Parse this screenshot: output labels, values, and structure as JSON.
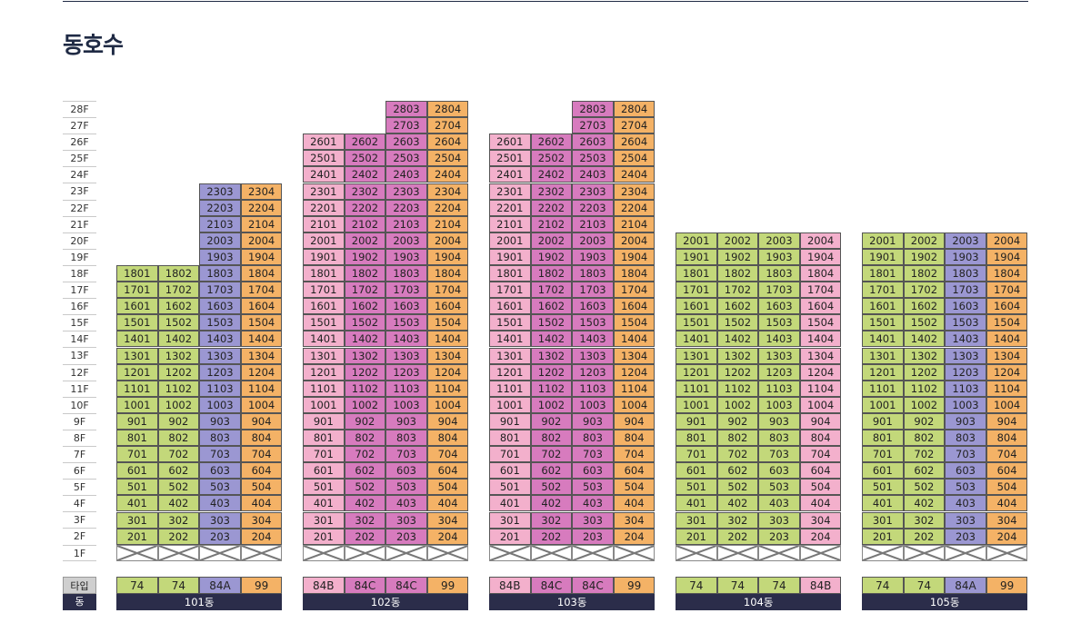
{
  "title": "동호수",
  "floors": [
    "28F",
    "27F",
    "26F",
    "25F",
    "24F",
    "23F",
    "22F",
    "21F",
    "20F",
    "19F",
    "18F",
    "17F",
    "16F",
    "15F",
    "14F",
    "13F",
    "12F",
    "11F",
    "10F",
    "9F",
    "8F",
    "7F",
    "6F",
    "5F",
    "4F",
    "3F",
    "2F",
    "1F"
  ],
  "legend": {
    "type_label": "타입",
    "dong_label": "동"
  },
  "type_colors": {
    "74": "#c3d87a",
    "84A": "#9b97d2",
    "84B": "#f3b0cc",
    "84C": "#d77bbe",
    "99": "#f4b266"
  },
  "buildings": [
    {
      "name": "101동",
      "types": [
        "74",
        "74",
        "84A",
        "99"
      ],
      "col_max_floor": [
        18,
        18,
        23,
        23
      ]
    },
    {
      "name": "102동",
      "types": [
        "84B",
        "84C",
        "84C",
        "99"
      ],
      "col_max_floor": [
        26,
        26,
        28,
        28
      ]
    },
    {
      "name": "103동",
      "types": [
        "84B",
        "84C",
        "84C",
        "99"
      ],
      "col_max_floor": [
        26,
        26,
        28,
        28
      ]
    },
    {
      "name": "104동",
      "types": [
        "74",
        "74",
        "74",
        "84B"
      ],
      "col_max_floor": [
        20,
        20,
        20,
        20
      ]
    },
    {
      "name": "105동",
      "types": [
        "74",
        "74",
        "84A",
        "99"
      ],
      "col_max_floor": [
        20,
        20,
        20,
        20
      ]
    }
  ]
}
